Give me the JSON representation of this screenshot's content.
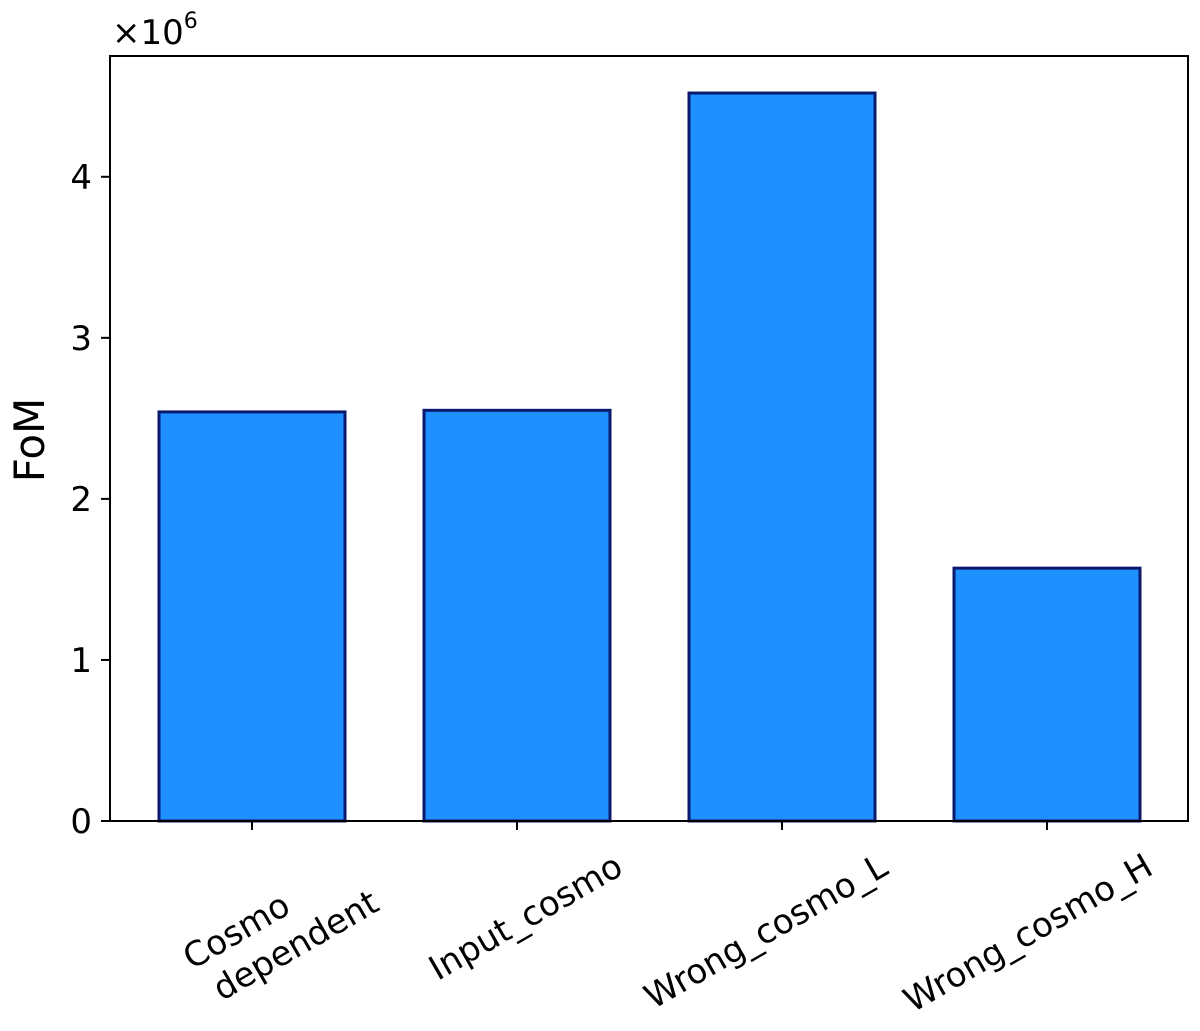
{
  "chart_data": {
    "type": "bar",
    "categories": [
      "Cosmo\ndependent",
      "Input_cosmo",
      "Wrong_cosmo_L",
      "Wrong_cosmo_H"
    ],
    "values": [
      2540000,
      2550000,
      4520000,
      1570000
    ],
    "ylabel": "FoM",
    "xlabel": "",
    "ylim": [
      0,
      4750000
    ],
    "yticks": [
      0,
      1,
      2,
      3,
      4
    ],
    "ytick_labels": [
      "0",
      "1",
      "2",
      "3",
      "4"
    ],
    "scale_multiplier": {
      "base": "×10",
      "exponent": "6"
    },
    "bar_color": "#1E90FF",
    "bar_edge_color": "#0B1A6E",
    "grid": false,
    "category_label_rotation_deg": -30
  }
}
